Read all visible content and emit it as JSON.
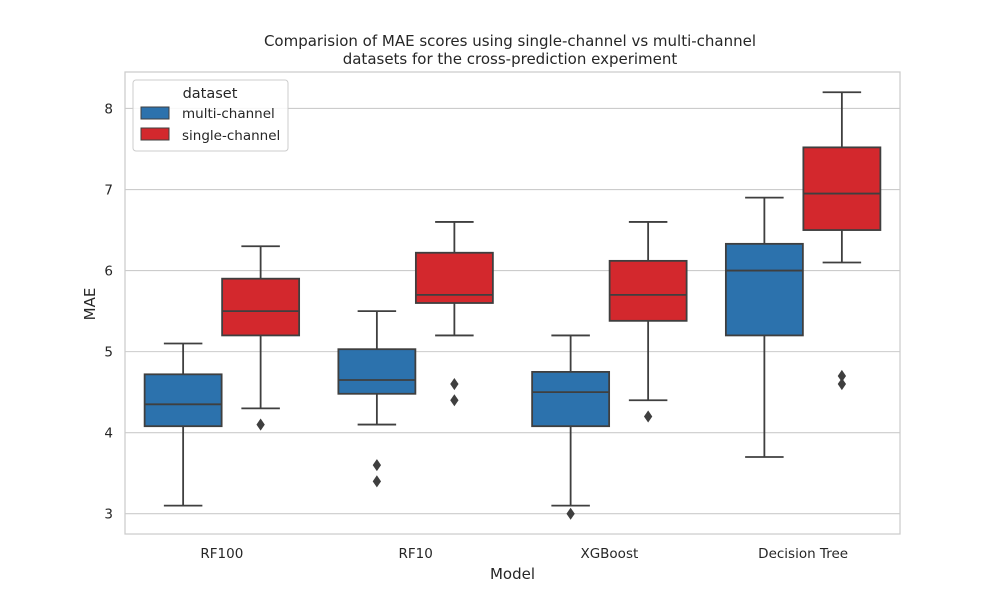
{
  "chart_data": {
    "type": "box",
    "title_line1": "Comparision of MAE scores using single-channel vs multi-channel",
    "title_line2": "datasets for the cross-prediction experiment",
    "xlabel": "Model",
    "ylabel": "MAE",
    "ylim": [
      2.75,
      8.45
    ],
    "yticks": [
      "3",
      "4",
      "5",
      "6",
      "7",
      "8"
    ],
    "grid": true,
    "legend": {
      "title": "dataset",
      "placement": "top-left",
      "entries": [
        "multi-channel",
        "single-channel"
      ]
    },
    "categories": [
      "RF100",
      "RF10",
      "XGBoost",
      "Decision Tree"
    ],
    "series": [
      {
        "name": "multi-channel",
        "color": "#2c72ad",
        "boxes": [
          {
            "whisker_low": 3.1,
            "q1": 4.08,
            "median": 4.35,
            "q3": 4.72,
            "whisker_high": 5.1,
            "outliers": []
          },
          {
            "whisker_low": 4.1,
            "q1": 4.48,
            "median": 4.65,
            "q3": 5.03,
            "whisker_high": 5.5,
            "outliers": [
              3.6,
              3.4
            ]
          },
          {
            "whisker_low": 3.1,
            "q1": 4.08,
            "median": 4.5,
            "q3": 4.75,
            "whisker_high": 5.2,
            "outliers": [
              3.0
            ]
          },
          {
            "whisker_low": 3.7,
            "q1": 5.2,
            "median": 6.0,
            "q3": 6.33,
            "whisker_high": 6.9,
            "outliers": []
          }
        ]
      },
      {
        "name": "single-channel",
        "color": "#d3282d",
        "boxes": [
          {
            "whisker_low": 4.3,
            "q1": 5.2,
            "median": 5.5,
            "q3": 5.9,
            "whisker_high": 6.3,
            "outliers": [
              4.1
            ]
          },
          {
            "whisker_low": 5.2,
            "q1": 5.6,
            "median": 5.7,
            "q3": 6.22,
            "whisker_high": 6.6,
            "outliers": [
              4.6,
              4.4
            ]
          },
          {
            "whisker_low": 4.4,
            "q1": 5.38,
            "median": 5.7,
            "q3": 6.12,
            "whisker_high": 6.6,
            "outliers": [
              4.2
            ]
          },
          {
            "whisker_low": 6.1,
            "q1": 6.5,
            "median": 6.95,
            "q3": 7.52,
            "whisker_high": 8.2,
            "outliers": [
              4.7,
              4.6
            ]
          }
        ]
      }
    ]
  }
}
